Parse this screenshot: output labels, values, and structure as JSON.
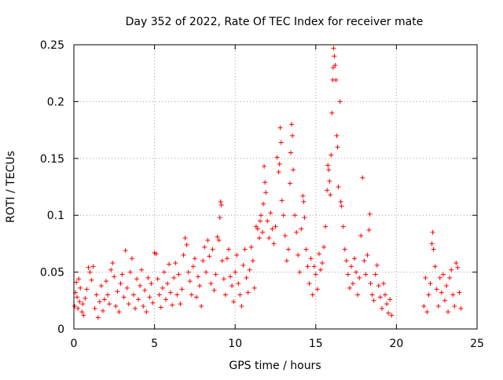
{
  "chart_data": {
    "type": "scatter",
    "title": "Day 352 of 2022, Rate Of TEC Index for receiver mate",
    "xlabel": "GPS time / hours",
    "ylabel": "ROTI / TECUs",
    "xlim": [
      0,
      25
    ],
    "ylim": [
      0,
      0.25
    ],
    "xticks": [
      0,
      5,
      10,
      15,
      20,
      25
    ],
    "xtick_labels": [
      "0",
      "5",
      "10",
      "15",
      "20",
      "25"
    ],
    "yticks": [
      0,
      0.05,
      0.1,
      0.15,
      0.2,
      0.25
    ],
    "ytick_labels": [
      "0",
      "0.05",
      "0.1",
      "0.15",
      "0.2",
      "0.25"
    ],
    "grid": true,
    "marker": "plus",
    "series": [
      {
        "name": "",
        "color": "#ff0000",
        "points": [
          [
            0.05,
            0.02
          ],
          [
            0.1,
            0.032
          ],
          [
            0.15,
            0.041
          ],
          [
            0.2,
            0.028
          ],
          [
            0.25,
            0.018
          ],
          [
            0.3,
            0.044
          ],
          [
            0.35,
            0.024
          ],
          [
            0.4,
            0.036
          ],
          [
            0.5,
            0.015
          ],
          [
            0.55,
            0.022
          ],
          [
            0.6,
            0.012
          ],
          [
            0.7,
            0.027
          ],
          [
            0.8,
            0.035
          ],
          [
            0.9,
            0.054
          ],
          [
            1.0,
            0.05
          ],
          [
            1.1,
            0.043
          ],
          [
            1.2,
            0.055
          ],
          [
            1.3,
            0.018
          ],
          [
            1.4,
            0.03
          ],
          [
            1.5,
            0.01
          ],
          [
            1.6,
            0.024
          ],
          [
            1.7,
            0.038
          ],
          [
            1.8,
            0.016
          ],
          [
            1.9,
            0.026
          ],
          [
            2.0,
            0.042
          ],
          [
            2.1,
            0.03
          ],
          [
            2.2,
            0.022
          ],
          [
            2.3,
            0.052
          ],
          [
            2.4,
            0.058
          ],
          [
            2.5,
            0.046
          ],
          [
            2.6,
            0.02
          ],
          [
            2.7,
            0.033
          ],
          [
            2.8,
            0.015
          ],
          [
            2.9,
            0.04
          ],
          [
            3.0,
            0.048
          ],
          [
            3.1,
            0.028
          ],
          [
            3.2,
            0.069
          ],
          [
            3.3,
            0.036
          ],
          [
            3.4,
            0.022
          ],
          [
            3.5,
            0.05
          ],
          [
            3.6,
            0.062
          ],
          [
            3.7,
            0.03
          ],
          [
            3.8,
            0.018
          ],
          [
            3.9,
            0.044
          ],
          [
            4.0,
            0.026
          ],
          [
            4.1,
            0.038
          ],
          [
            4.2,
            0.052
          ],
          [
            4.3,
            0.02
          ],
          [
            4.4,
            0.034
          ],
          [
            4.5,
            0.015
          ],
          [
            4.6,
            0.045
          ],
          [
            4.7,
            0.028
          ],
          [
            4.8,
            0.04
          ],
          [
            4.9,
            0.023
          ],
          [
            5.0,
            0.067
          ],
          [
            5.1,
            0.066
          ],
          [
            5.2,
            0.044
          ],
          [
            5.3,
            0.03
          ],
          [
            5.4,
            0.019
          ],
          [
            5.5,
            0.036
          ],
          [
            5.6,
            0.05
          ],
          [
            5.7,
            0.026
          ],
          [
            5.8,
            0.04
          ],
          [
            5.9,
            0.057
          ],
          [
            6.0,
            0.032
          ],
          [
            6.1,
            0.021
          ],
          [
            6.2,
            0.045
          ],
          [
            6.3,
            0.058
          ],
          [
            6.4,
            0.03
          ],
          [
            6.5,
            0.048
          ],
          [
            6.6,
            0.022
          ],
          [
            6.7,
            0.035
          ],
          [
            6.8,
            0.065
          ],
          [
            6.9,
            0.08
          ],
          [
            7.0,
            0.074
          ],
          [
            7.1,
            0.05
          ],
          [
            7.2,
            0.042
          ],
          [
            7.3,
            0.03
          ],
          [
            7.4,
            0.055
          ],
          [
            7.5,
            0.062
          ],
          [
            7.6,
            0.028
          ],
          [
            7.7,
            0.046
          ],
          [
            7.8,
            0.038
          ],
          [
            7.9,
            0.02
          ],
          [
            8.0,
            0.06
          ],
          [
            8.1,
            0.072
          ],
          [
            8.2,
            0.05
          ],
          [
            8.3,
            0.078
          ],
          [
            8.4,
            0.064
          ],
          [
            8.5,
            0.04
          ],
          [
            8.6,
            0.07
          ],
          [
            8.7,
            0.034
          ],
          [
            8.8,
            0.048
          ],
          [
            8.9,
            0.081
          ],
          [
            9.0,
            0.078
          ],
          [
            9.05,
            0.098
          ],
          [
            9.1,
            0.112
          ],
          [
            9.15,
            0.109
          ],
          [
            9.2,
            0.06
          ],
          [
            9.3,
            0.044
          ],
          [
            9.4,
            0.03
          ],
          [
            9.5,
            0.062
          ],
          [
            9.6,
            0.07
          ],
          [
            9.7,
            0.046
          ],
          [
            9.8,
            0.038
          ],
          [
            9.9,
            0.024
          ],
          [
            10.0,
            0.05
          ],
          [
            10.1,
            0.065
          ],
          [
            10.2,
            0.04
          ],
          [
            10.3,
            0.03
          ],
          [
            10.4,
            0.02
          ],
          [
            10.5,
            0.056
          ],
          [
            10.6,
            0.07
          ],
          [
            10.7,
            0.045
          ],
          [
            10.8,
            0.032
          ],
          [
            10.9,
            0.052
          ],
          [
            11.0,
            0.072
          ],
          [
            11.1,
            0.06
          ],
          [
            11.2,
            0.036
          ],
          [
            11.3,
            0.09
          ],
          [
            11.4,
            0.088
          ],
          [
            11.5,
            0.08
          ],
          [
            11.55,
            0.095
          ],
          [
            11.6,
            0.1
          ],
          [
            11.7,
            0.085
          ],
          [
            11.75,
            0.11
          ],
          [
            11.8,
            0.143
          ],
          [
            11.85,
            0.129
          ],
          [
            11.9,
            0.12
          ],
          [
            12.0,
            0.095
          ],
          [
            12.1,
            0.08
          ],
          [
            12.2,
            0.102
          ],
          [
            12.3,
            0.088
          ],
          [
            12.4,
            0.075
          ],
          [
            12.5,
            0.09
          ],
          [
            12.6,
            0.151
          ],
          [
            12.7,
            0.138
          ],
          [
            12.75,
            0.145
          ],
          [
            12.8,
            0.177
          ],
          [
            12.85,
            0.164
          ],
          [
            12.9,
            0.113
          ],
          [
            13.0,
            0.1
          ],
          [
            13.1,
            0.082
          ],
          [
            13.2,
            0.06
          ],
          [
            13.3,
            0.07
          ],
          [
            13.4,
            0.128
          ],
          [
            13.45,
            0.155
          ],
          [
            13.5,
            0.18
          ],
          [
            13.55,
            0.17
          ],
          [
            13.6,
            0.14
          ],
          [
            13.7,
            0.1
          ],
          [
            13.8,
            0.085
          ],
          [
            13.9,
            0.065
          ],
          [
            14.0,
            0.05
          ],
          [
            14.1,
            0.088
          ],
          [
            14.2,
            0.117
          ],
          [
            14.25,
            0.112
          ],
          [
            14.3,
            0.098
          ],
          [
            14.4,
            0.07
          ],
          [
            14.5,
            0.055
          ],
          [
            14.6,
            0.04
          ],
          [
            14.7,
            0.062
          ],
          [
            14.8,
            0.03
          ],
          [
            14.9,
            0.055
          ],
          [
            15.0,
            0.048
          ],
          [
            15.1,
            0.035
          ],
          [
            15.2,
            0.066
          ],
          [
            15.3,
            0.052
          ],
          [
            15.4,
            0.058
          ],
          [
            15.5,
            0.072
          ],
          [
            15.6,
            0.09
          ],
          [
            15.7,
            0.122
          ],
          [
            15.75,
            0.144
          ],
          [
            15.8,
            0.14
          ],
          [
            15.85,
            0.13
          ],
          [
            15.9,
            0.118
          ],
          [
            15.95,
            0.153
          ],
          [
            16.0,
            0.19
          ],
          [
            16.05,
            0.219
          ],
          [
            16.08,
            0.23
          ],
          [
            16.1,
            0.247
          ],
          [
            16.15,
            0.24
          ],
          [
            16.2,
            0.232
          ],
          [
            16.25,
            0.219
          ],
          [
            16.3,
            0.17
          ],
          [
            16.35,
            0.16
          ],
          [
            16.4,
            0.125
          ],
          [
            16.5,
            0.2
          ],
          [
            16.55,
            0.112
          ],
          [
            16.6,
            0.108
          ],
          [
            16.7,
            0.09
          ],
          [
            16.8,
            0.07
          ],
          [
            16.9,
            0.06
          ],
          [
            17.0,
            0.048
          ],
          [
            17.1,
            0.036
          ],
          [
            17.2,
            0.055
          ],
          [
            17.3,
            0.04
          ],
          [
            17.4,
            0.062
          ],
          [
            17.5,
            0.05
          ],
          [
            17.6,
            0.03
          ],
          [
            17.7,
            0.045
          ],
          [
            17.8,
            0.082
          ],
          [
            17.9,
            0.133
          ],
          [
            18.0,
            0.06
          ],
          [
            18.1,
            0.048
          ],
          [
            18.2,
            0.065
          ],
          [
            18.3,
            0.087
          ],
          [
            18.35,
            0.101
          ],
          [
            18.4,
            0.04
          ],
          [
            18.5,
            0.03
          ],
          [
            18.6,
            0.025
          ],
          [
            18.7,
            0.048
          ],
          [
            18.8,
            0.056
          ],
          [
            18.9,
            0.038
          ],
          [
            19.0,
            0.028
          ],
          [
            19.1,
            0.018
          ],
          [
            19.2,
            0.04
          ],
          [
            19.3,
            0.03
          ],
          [
            19.4,
            0.022
          ],
          [
            19.5,
            0.014
          ],
          [
            19.6,
            0.026
          ],
          [
            19.7,
            0.012
          ],
          [
            21.7,
            0.02
          ],
          [
            21.8,
            0.045
          ],
          [
            21.9,
            0.015
          ],
          [
            22.0,
            0.03
          ],
          [
            22.1,
            0.04
          ],
          [
            22.2,
            0.075
          ],
          [
            22.25,
            0.085
          ],
          [
            22.3,
            0.07
          ],
          [
            22.4,
            0.055
          ],
          [
            22.5,
            0.035
          ],
          [
            22.6,
            0.02
          ],
          [
            22.7,
            0.045
          ],
          [
            22.8,
            0.032
          ],
          [
            22.9,
            0.048
          ],
          [
            23.0,
            0.025
          ],
          [
            23.1,
            0.038
          ],
          [
            23.2,
            0.015
          ],
          [
            23.3,
            0.045
          ],
          [
            23.4,
            0.052
          ],
          [
            23.5,
            0.03
          ],
          [
            23.6,
            0.02
          ],
          [
            23.7,
            0.058
          ],
          [
            23.8,
            0.054
          ],
          [
            23.9,
            0.032
          ],
          [
            24.0,
            0.018
          ]
        ]
      }
    ]
  }
}
